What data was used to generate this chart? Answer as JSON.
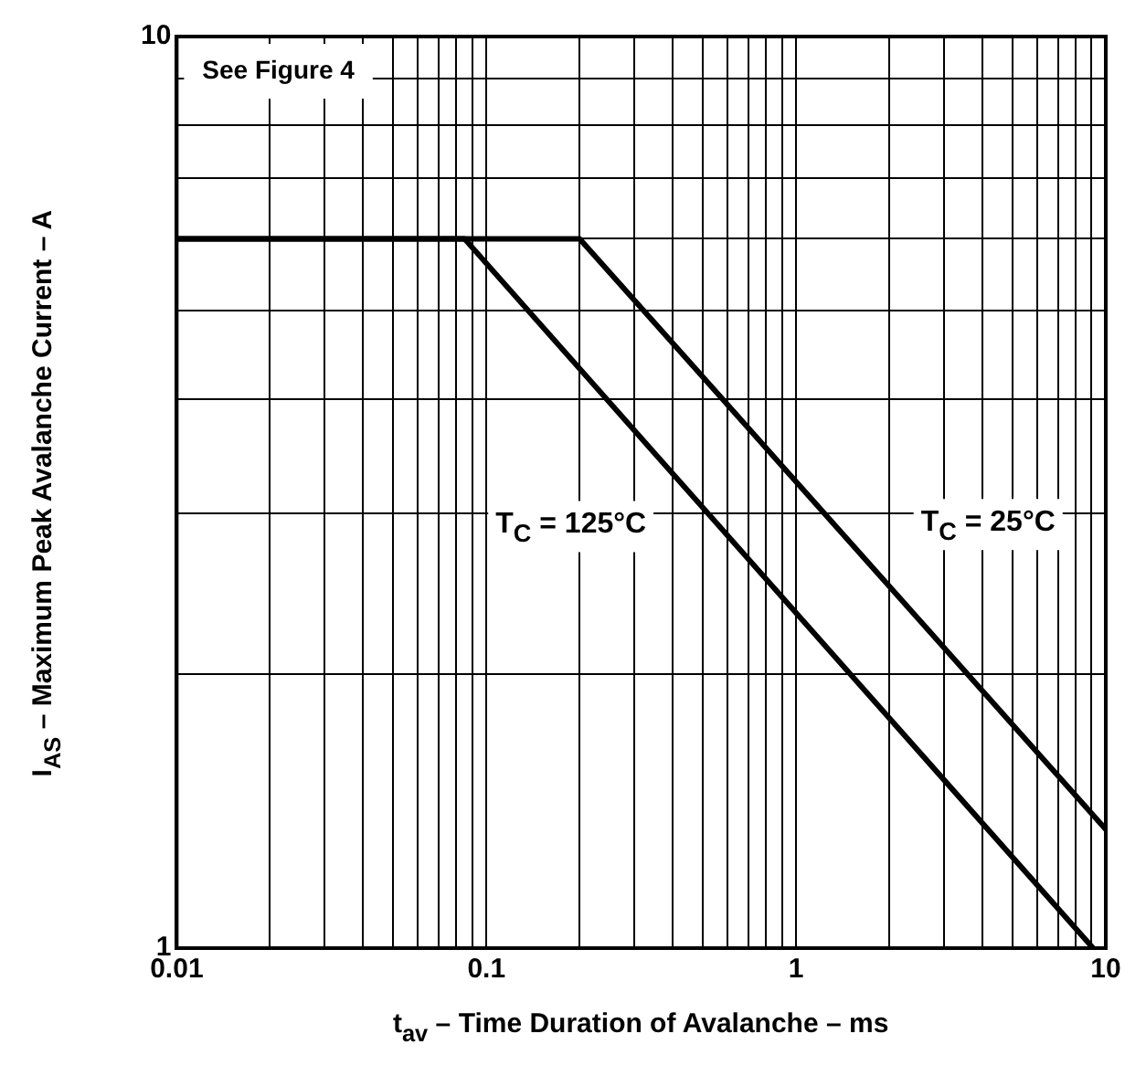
{
  "chart_data": {
    "type": "line",
    "xlabel": "t$_{av}$ – Time Duration of Avalanche – ms",
    "ylabel": "I$_{AS}$ – Maximum Peak Avalanche Current – A",
    "series": [
      {
        "name": "T$_{C}$ = 25°C",
        "color": "#000000",
        "x": [
          0.01,
          0.2,
          10
        ],
        "values": [
          6,
          6,
          1.35
        ]
      },
      {
        "name": "T$_{C}$ = 125°C",
        "color": "#000000",
        "x": [
          0.01,
          0.085,
          9.1
        ],
        "values": [
          6,
          6,
          1
        ]
      }
    ],
    "log": "xy",
    "xlim": [
      0.01,
      10
    ],
    "ylim": [
      1,
      10
    ],
    "xticks": [
      0.01,
      {
        "value": 0.02,
        "label": null
      },
      {
        "value": 0.03,
        "label": null
      },
      {
        "value": 0.04,
        "label": null
      },
      {
        "value": 0.05,
        "label": null
      },
      {
        "value": 0.06,
        "label": null
      },
      {
        "value": 0.07,
        "label": null
      },
      {
        "value": 0.08,
        "label": null
      },
      {
        "value": 0.09,
        "label": null
      },
      0.1,
      {
        "value": 0.2,
        "label": null
      },
      {
        "value": 0.3,
        "label": null
      },
      {
        "value": 0.4,
        "label": null
      },
      {
        "value": 0.5,
        "label": null
      },
      {
        "value": 0.6,
        "label": null
      },
      {
        "value": 0.7,
        "label": null
      },
      {
        "value": 0.8,
        "label": null
      },
      {
        "value": 0.9,
        "label": null
      },
      1,
      {
        "value": 2,
        "label": null
      },
      {
        "value": 3,
        "label": null
      },
      {
        "value": 4,
        "label": null
      },
      {
        "value": 5,
        "label": null
      },
      {
        "value": 6,
        "label": null
      },
      {
        "value": 7,
        "label": null
      },
      {
        "value": 8,
        "label": null
      },
      {
        "value": 9,
        "label": null
      },
      10
    ],
    "yticks": [
      1,
      {
        "value": 2,
        "label": null
      },
      {
        "value": 3,
        "label": null
      },
      {
        "value": 4,
        "label": null
      },
      {
        "value": 5,
        "label": null
      },
      {
        "value": 6,
        "label": null
      },
      {
        "value": 7,
        "label": null
      },
      {
        "value": 8,
        "label": null
      },
      {
        "value": 9,
        "label": null
      },
      10
    ],
    "grid": true,
    "legend": false,
    "marker": "none",
    "line_style": "solid",
    "annotations": [
      "See Figure 4"
    ]
  }
}
